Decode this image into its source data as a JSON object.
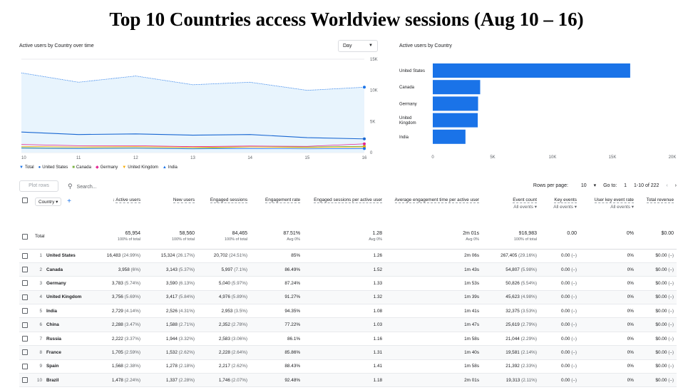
{
  "title": "Top 10 Countries access Worldview sessions (Aug 10 – 16)",
  "line_panel": {
    "label": "Active users by Country over time",
    "granularity": "Day",
    "y_ticks": [
      "15K",
      "10K",
      "5K",
      "0"
    ],
    "x_ticks": [
      "10",
      "11",
      "12",
      "13",
      "14",
      "15",
      "16"
    ],
    "x_sub": "Aug"
  },
  "bar_panel": {
    "label": "Active users by Country",
    "x_ticks": [
      "0",
      "5K",
      "10K",
      "15K",
      "20K"
    ]
  },
  "legend": [
    {
      "name": "Total",
      "color": "#1a73e8",
      "icon": "pin-marker"
    },
    {
      "name": "United States",
      "color": "#1967d2",
      "icon": "circle-marker"
    },
    {
      "name": "Canada",
      "color": "#7cb342",
      "icon": "square-marker"
    },
    {
      "name": "Germany",
      "color": "#e52592",
      "icon": "diamond-marker"
    },
    {
      "name": "United Kingdom",
      "color": "#f9ab00",
      "icon": "triangle-down-marker"
    },
    {
      "name": "India",
      "color": "#1a73e8",
      "icon": "triangle-up-marker"
    }
  ],
  "chart_data": [
    {
      "type": "line",
      "x": [
        "10",
        "11",
        "12",
        "13",
        "14",
        "15",
        "16"
      ],
      "ylim": [
        0,
        15000
      ],
      "series": [
        {
          "name": "Total",
          "values": [
            12800,
            11300,
            12300,
            10900,
            11300,
            10000,
            10500
          ]
        },
        {
          "name": "United States",
          "values": [
            3300,
            2900,
            3000,
            2800,
            2900,
            2400,
            2200
          ]
        },
        {
          "name": "Canada",
          "values": [
            800,
            700,
            750,
            650,
            900,
            900,
            1000
          ]
        },
        {
          "name": "Germany",
          "values": [
            1300,
            1100,
            1100,
            950,
            1050,
            1000,
            1400
          ]
        },
        {
          "name": "United Kingdom",
          "values": [
            1000,
            900,
            950,
            850,
            900,
            800,
            900
          ]
        },
        {
          "name": "India",
          "values": [
            700,
            650,
            700,
            600,
            650,
            600,
            650
          ]
        }
      ]
    },
    {
      "type": "bar",
      "orientation": "horizontal",
      "categories": [
        "United States",
        "Canada",
        "Germany",
        "United Kingdom",
        "India"
      ],
      "values": [
        16483,
        3958,
        3783,
        3756,
        2729
      ],
      "xlim": [
        0,
        20000
      ],
      "color": "#1a73e8"
    }
  ],
  "toolbar": {
    "plot_rows": "Plot rows",
    "search_placeholder": "Search...",
    "rows_per_page_label": "Rows per page:",
    "rows_per_page": "10",
    "goto_label": "Go to:",
    "goto_value": "1",
    "range": "1-10 of 222"
  },
  "table": {
    "dim_button": "Country",
    "headers": {
      "active_users": "Active users",
      "new_users": "New users",
      "engaged_sessions": "Engaged sessions",
      "engagement_rate": "Engagement rate",
      "eng_per_user": "Engaged sessions per active user",
      "avg_time": "Average engagement time per active user",
      "event_count": "Event count",
      "event_count_sub": "All events",
      "key_events": "Key events",
      "key_events_sub": "All events",
      "user_key_rate": "User key event rate",
      "user_key_rate_sub": "All events",
      "revenue": "Total revenue"
    },
    "total": {
      "label": "Total",
      "active_users": "65,954",
      "active_users_sub": "100% of total",
      "new_users": "58,560",
      "new_users_sub": "100% of total",
      "engaged_sessions": "84,465",
      "engaged_sessions_sub": "100% of total",
      "engagement_rate": "87.51%",
      "engagement_rate_sub": "Avg 0%",
      "eng_per_user": "1.28",
      "eng_per_user_sub": "Avg 0%",
      "avg_time": "2m 01s",
      "avg_time_sub": "Avg 0%",
      "event_count": "916,983",
      "event_count_sub": "100% of total",
      "key_events": "0.00",
      "user_key_rate": "0%",
      "revenue": "$0.00"
    },
    "rows": [
      {
        "n": "1",
        "country": "United States",
        "au": "16,483",
        "aup": "(24.99%)",
        "nu": "15,324",
        "nup": "(26.17%)",
        "es": "20,702",
        "esp": "(24.51%)",
        "er": "85%",
        "epu": "1.26",
        "t": "2m 06s",
        "ec": "267,405",
        "ecp": "(29.16%)",
        "ke": "0.00",
        "kep": "(–)",
        "ukr": "0%",
        "rev": "$0.00",
        "revp": "(–)"
      },
      {
        "n": "2",
        "country": "Canada",
        "au": "3,958",
        "aup": "(6%)",
        "nu": "3,143",
        "nup": "(5.37%)",
        "es": "5,997",
        "esp": "(7.1%)",
        "er": "86.49%",
        "epu": "1.52",
        "t": "1m 43s",
        "ec": "54,807",
        "ecp": "(5.98%)",
        "ke": "0.00",
        "kep": "(–)",
        "ukr": "0%",
        "rev": "$0.00",
        "revp": "(–)"
      },
      {
        "n": "3",
        "country": "Germany",
        "au": "3,783",
        "aup": "(5.74%)",
        "nu": "3,590",
        "nup": "(6.13%)",
        "es": "5,040",
        "esp": "(5.97%)",
        "er": "87.24%",
        "epu": "1.33",
        "t": "1m 53s",
        "ec": "50,826",
        "ecp": "(5.54%)",
        "ke": "0.00",
        "kep": "(–)",
        "ukr": "0%",
        "rev": "$0.00",
        "revp": "(–)"
      },
      {
        "n": "4",
        "country": "United Kingdom",
        "au": "3,756",
        "aup": "(5.69%)",
        "nu": "3,417",
        "nup": "(5.84%)",
        "es": "4,976",
        "esp": "(5.89%)",
        "er": "91.27%",
        "epu": "1.32",
        "t": "1m 39s",
        "ec": "45,623",
        "ecp": "(4.98%)",
        "ke": "0.00",
        "kep": "(–)",
        "ukr": "0%",
        "rev": "$0.00",
        "revp": "(–)"
      },
      {
        "n": "5",
        "country": "India",
        "au": "2,729",
        "aup": "(4.14%)",
        "nu": "2,526",
        "nup": "(4.31%)",
        "es": "2,953",
        "esp": "(3.5%)",
        "er": "94.35%",
        "epu": "1.08",
        "t": "1m 41s",
        "ec": "32,375",
        "ecp": "(3.53%)",
        "ke": "0.00",
        "kep": "(–)",
        "ukr": "0%",
        "rev": "$0.00",
        "revp": "(–)"
      },
      {
        "n": "6",
        "country": "China",
        "au": "2,288",
        "aup": "(3.47%)",
        "nu": "1,588",
        "nup": "(2.71%)",
        "es": "2,352",
        "esp": "(2.78%)",
        "er": "77.22%",
        "epu": "1.03",
        "t": "1m 47s",
        "ec": "25,619",
        "ecp": "(2.79%)",
        "ke": "0.00",
        "kep": "(–)",
        "ukr": "0%",
        "rev": "$0.00",
        "revp": "(–)"
      },
      {
        "n": "7",
        "country": "Russia",
        "au": "2,222",
        "aup": "(3.37%)",
        "nu": "1,944",
        "nup": "(3.32%)",
        "es": "2,583",
        "esp": "(3.06%)",
        "er": "86.1%",
        "epu": "1.16",
        "t": "1m 58s",
        "ec": "21,044",
        "ecp": "(2.29%)",
        "ke": "0.00",
        "kep": "(–)",
        "ukr": "0%",
        "rev": "$0.00",
        "revp": "(–)"
      },
      {
        "n": "8",
        "country": "France",
        "au": "1,705",
        "aup": "(2.59%)",
        "nu": "1,532",
        "nup": "(2.62%)",
        "es": "2,228",
        "esp": "(2.64%)",
        "er": "85.86%",
        "epu": "1.31",
        "t": "1m 40s",
        "ec": "19,581",
        "ecp": "(2.14%)",
        "ke": "0.00",
        "kep": "(–)",
        "ukr": "0%",
        "rev": "$0.00",
        "revp": "(–)"
      },
      {
        "n": "9",
        "country": "Spain",
        "au": "1,568",
        "aup": "(2.38%)",
        "nu": "1,278",
        "nup": "(2.18%)",
        "es": "2,217",
        "esp": "(2.62%)",
        "er": "88.43%",
        "epu": "1.41",
        "t": "1m 58s",
        "ec": "21,392",
        "ecp": "(2.33%)",
        "ke": "0.00",
        "kep": "(–)",
        "ukr": "0%",
        "rev": "$0.00",
        "revp": "(–)"
      },
      {
        "n": "10",
        "country": "Brazil",
        "au": "1,478",
        "aup": "(2.24%)",
        "nu": "1,337",
        "nup": "(2.28%)",
        "es": "1,746",
        "esp": "(2.07%)",
        "er": "92.48%",
        "epu": "1.18",
        "t": "2m 01s",
        "ec": "19,313",
        "ecp": "(2.11%)",
        "ke": "0.00",
        "kep": "(–)",
        "ukr": "0%",
        "rev": "$0.00",
        "revp": "(–)"
      }
    ]
  }
}
